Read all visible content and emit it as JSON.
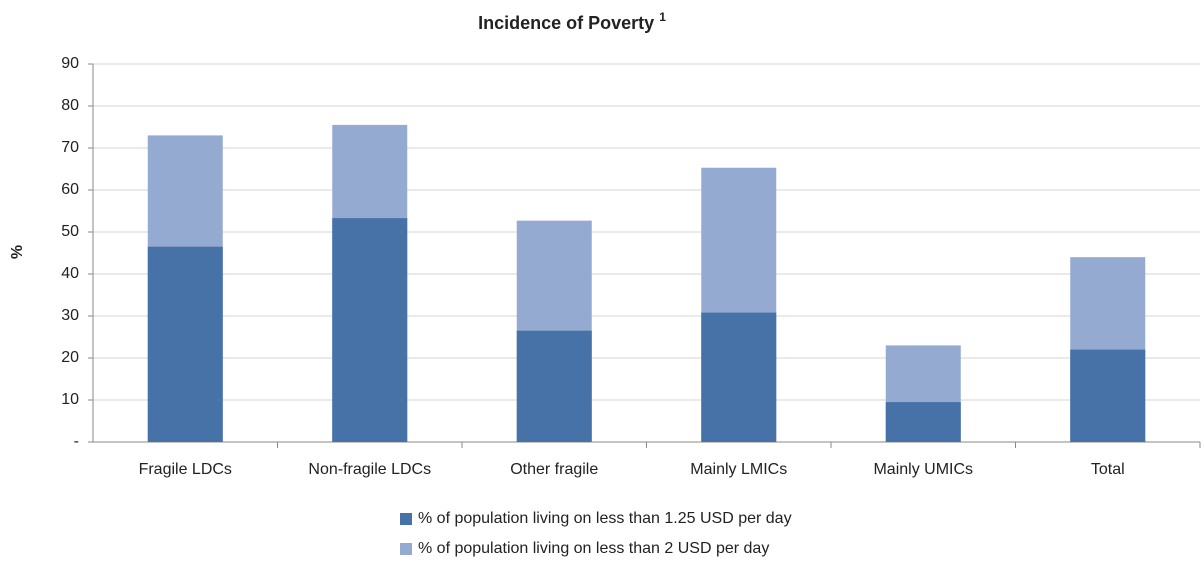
{
  "chart_data": {
    "type": "bar",
    "title": "Incidence of Poverty",
    "title_note": "1",
    "ylabel": "%",
    "categories": [
      "Fragile LDCs",
      "Non-fragile LDCs",
      "Other fragile",
      "Mainly LMICs",
      "Mainly UMICs",
      "Total"
    ],
    "series": [
      {
        "name": "% of population living on less than 1.25 USD per day",
        "color": "#4672a8",
        "values": [
          46.5,
          53.3,
          26.5,
          30.8,
          9.5,
          22
        ]
      },
      {
        "name": "% of population living on less than 2 USD per day",
        "color": "#94aad0",
        "values": [
          73,
          75.5,
          52.7,
          65.3,
          23,
          44
        ]
      }
    ],
    "ylim": [
      0,
      90
    ],
    "yticks": [
      {
        "value": 0,
        "label": "-"
      },
      10,
      20,
      30,
      40,
      50,
      60,
      70,
      80,
      90
    ],
    "grid": true
  }
}
